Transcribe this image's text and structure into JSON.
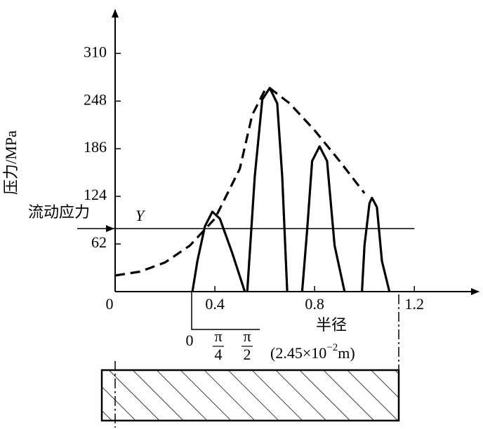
{
  "chart_data": {
    "type": "line",
    "y_label": "压力/MPa",
    "x_label": "半径",
    "x_unit": [
      "(2.45×10",
      "−2",
      "m)"
    ],
    "xlim": [
      0,
      1.45
    ],
    "ylim": [
      0,
      365
    ],
    "xticks": [
      0,
      0.4,
      0.8,
      1.2
    ],
    "yticks": [
      62,
      124,
      186,
      248,
      310
    ],
    "flow_stress": {
      "label": "流动应力",
      "symbol": "Y",
      "value": 82,
      "x_end": 1.2
    },
    "angle_labels": [
      "0",
      {
        "num": "π",
        "den": "4"
      },
      {
        "num": "π",
        "den": "2"
      }
    ],
    "series": [
      {
        "dash": true,
        "color": "#000000",
        "x": [
          0,
          0.1,
          0.2,
          0.3,
          0.4,
          0.5,
          0.55,
          0.6,
          0.62,
          0.7,
          0.8,
          0.9,
          1.0
        ],
        "values": [
          21,
          26,
          38,
          60,
          95,
          160,
          230,
          262,
          265,
          245,
          210,
          170,
          128
        ]
      },
      {
        "dash": false,
        "color": "#000000",
        "x": [
          0.31,
          0.33,
          0.36,
          0.39,
          0.42,
          0.47,
          0.52
        ],
        "values": [
          0,
          40,
          85,
          104,
          95,
          50,
          0
        ]
      },
      {
        "dash": false,
        "color": "#000000",
        "x": [
          0.53,
          0.56,
          0.59,
          0.62,
          0.65,
          0.67,
          0.69
        ],
        "values": [
          0,
          150,
          250,
          265,
          245,
          150,
          0
        ]
      },
      {
        "dash": false,
        "color": "#000000",
        "x": [
          0.75,
          0.77,
          0.79,
          0.82,
          0.85,
          0.88,
          0.92
        ],
        "values": [
          0,
          80,
          170,
          189,
          170,
          60,
          0
        ]
      },
      {
        "dash": false,
        "color": "#000000",
        "x": [
          0.99,
          1.0,
          1.02,
          1.03,
          1.05,
          1.07,
          1.1
        ],
        "values": [
          0,
          60,
          115,
          122,
          110,
          40,
          0
        ]
      }
    ]
  }
}
